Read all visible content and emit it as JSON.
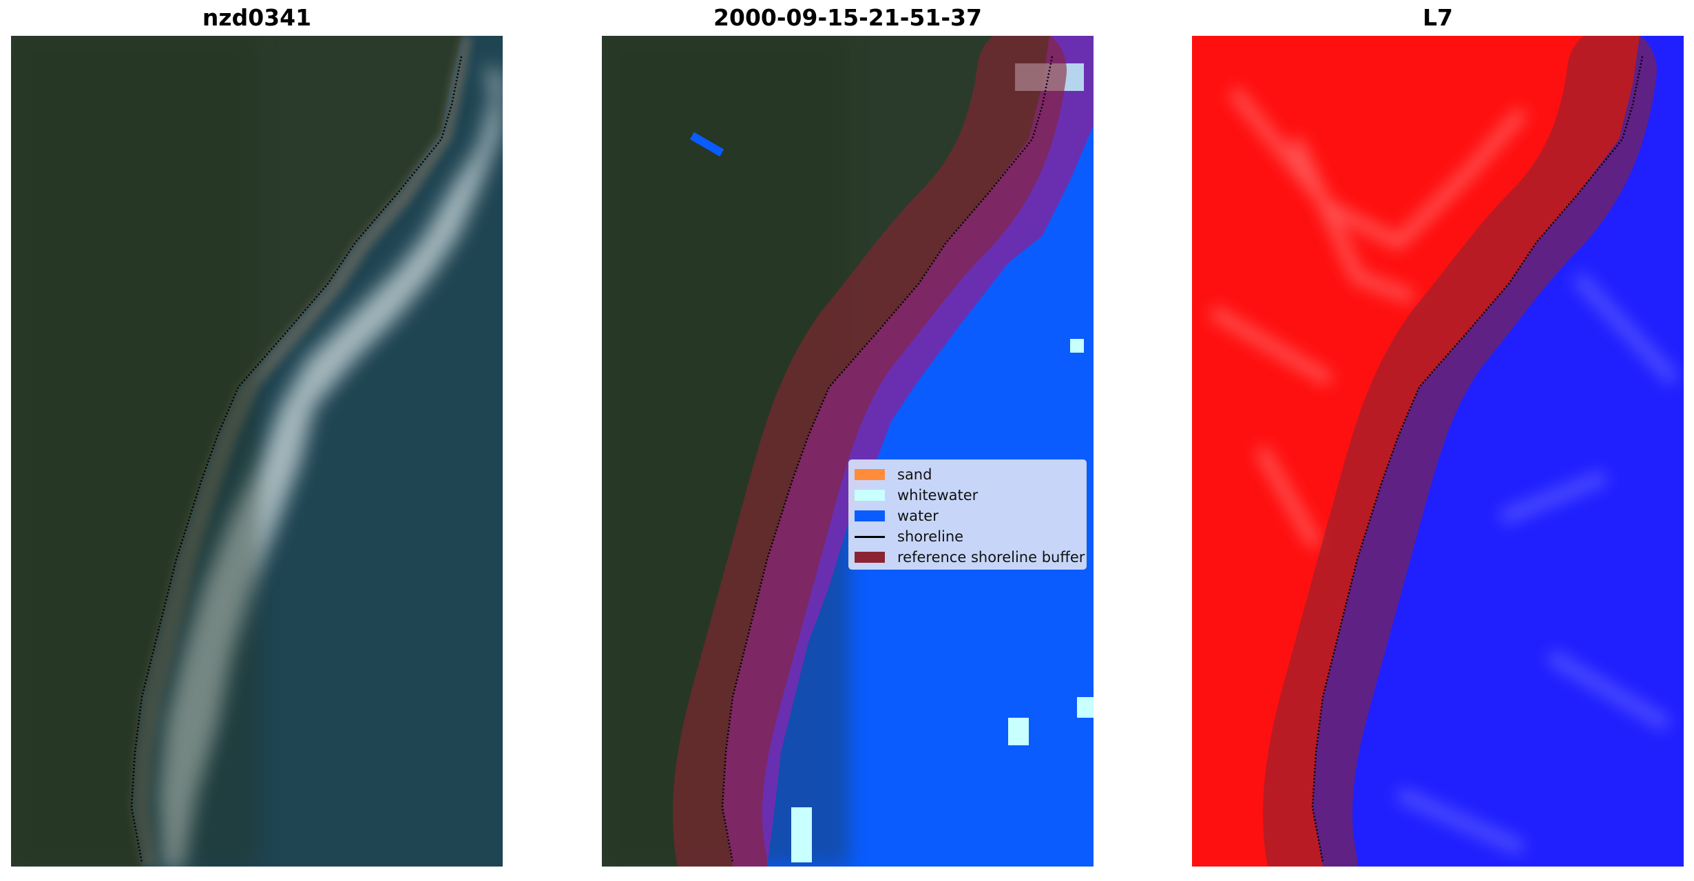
{
  "panels": [
    {
      "title": "nzd0341"
    },
    {
      "title": "2000-09-15-21-51-37"
    },
    {
      "title": "L7"
    }
  ],
  "legend": {
    "items": [
      {
        "label": "sand",
        "color": "#ff8c3a"
      },
      {
        "label": "whitewater",
        "color": "#c8ffff"
      },
      {
        "label": "water",
        "color": "#0a5cff"
      },
      {
        "label": "shoreline",
        "color": "#000000"
      },
      {
        "label": "reference shoreline buffer",
        "color": "#8b2332"
      }
    ]
  },
  "colors": {
    "land_rgb": "#2c3d2e",
    "sea_rgb": "#1f4452",
    "surf": "#d8e4e6",
    "water_class": "#0a5cff",
    "whitewater_class": "#c8ffff",
    "buffer": "#8b2332",
    "land_index": "#ff1010",
    "water_index": "#2020ff"
  }
}
